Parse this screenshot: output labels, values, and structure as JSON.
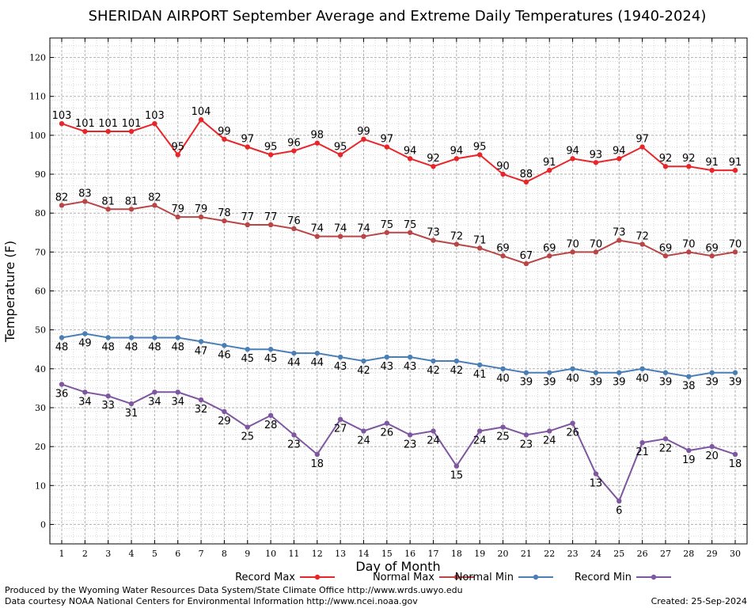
{
  "colors": {
    "record_max": "#e8262a",
    "normal_max": "#b84646",
    "normal_min": "#4a7fb5",
    "record_min": "#7e57a0",
    "grid_major": "#b0b0b0",
    "grid_minor": "#d8d8d8"
  },
  "chart_data": {
    "type": "line",
    "title": "SHERIDAN AIRPORT September Average and Extreme Daily Temperatures (1940-2024)",
    "xlabel": "Day of Month",
    "ylabel": "Temperature (F)",
    "x": [
      1,
      2,
      3,
      4,
      5,
      6,
      7,
      8,
      9,
      10,
      11,
      12,
      13,
      14,
      15,
      16,
      17,
      18,
      19,
      20,
      21,
      22,
      23,
      24,
      25,
      26,
      27,
      28,
      29,
      30
    ],
    "xlim": [
      1,
      30
    ],
    "ylim": [
      -5,
      125
    ],
    "yticks": [
      0,
      10,
      20,
      30,
      40,
      50,
      60,
      70,
      80,
      90,
      100,
      110,
      120
    ],
    "grid": true,
    "legend_position": "bottom",
    "series": [
      {
        "name": "Record Max",
        "color_key": "record_max",
        "values": [
          103,
          101,
          101,
          101,
          103,
          95,
          104,
          99,
          97,
          95,
          96,
          98,
          95,
          99,
          97,
          94,
          92,
          94,
          95,
          90,
          88,
          91,
          94,
          93,
          94,
          97,
          92,
          92,
          91,
          91
        ]
      },
      {
        "name": "Normal Max",
        "color_key": "normal_max",
        "values": [
          82,
          83,
          81,
          81,
          82,
          79,
          79,
          78,
          77,
          77,
          76,
          74,
          74,
          74,
          75,
          75,
          73,
          72,
          71,
          69,
          67,
          69,
          70,
          70,
          73,
          72,
          69,
          70,
          69,
          70
        ]
      },
      {
        "name": "Normal Min",
        "color_key": "normal_min",
        "values": [
          48,
          49,
          48,
          48,
          48,
          48,
          47,
          46,
          45,
          45,
          44,
          44,
          43,
          42,
          43,
          43,
          42,
          42,
          41,
          40,
          39,
          39,
          40,
          39,
          39,
          40,
          39,
          38,
          39,
          39
        ]
      },
      {
        "name": "Record Min",
        "color_key": "record_min",
        "values": [
          36,
          34,
          33,
          31,
          34,
          34,
          32,
          29,
          25,
          28,
          23,
          18,
          27,
          24,
          26,
          23,
          24,
          15,
          24,
          25,
          23,
          24,
          26,
          13,
          6,
          21,
          22,
          19,
          20,
          18
        ]
      }
    ]
  },
  "footer": {
    "credit1": "Produced by the Wyoming Water Resources Data System/State Climate Office http://www.wrds.uwyo.edu",
    "credit2": "Data courtesy NOAA National Centers for Environmental Information http://www.ncei.noaa.gov",
    "created": "Created:  25-Sep-2024"
  }
}
